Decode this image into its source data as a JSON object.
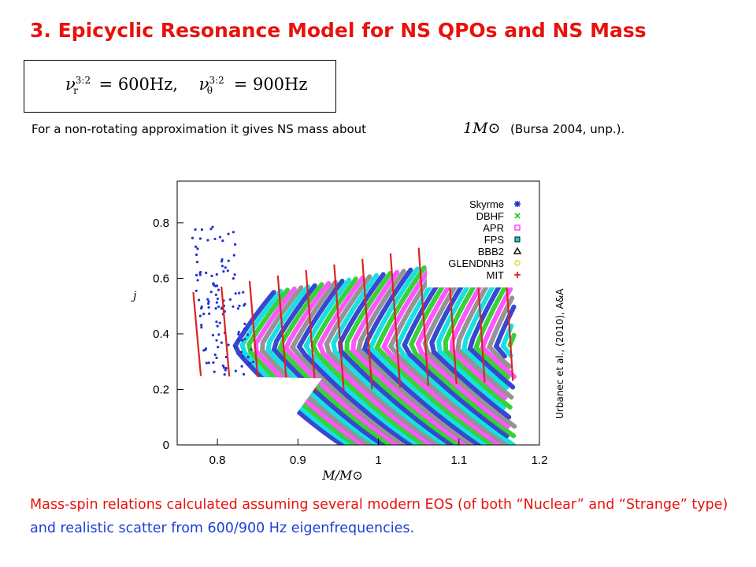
{
  "slide": {
    "title": "3. Epicyclic Resonance Model for NS QPOs and NS Mass",
    "formula": {
      "nu_r_sym": "ν",
      "nu_r_sup": "3:2",
      "nu_r_sub": "r",
      "nu_r_val": "= 600Hz,",
      "nu_t_sym": "ν",
      "nu_t_sup": "3:2",
      "nu_t_sub": "θ",
      "nu_t_val": "= 900Hz"
    },
    "line2_text": "For a non-rotating approximation it gives NS mass about",
    "mass_symbol": "1M⊙",
    "line2_ref": "(Bursa 2004, unp.).",
    "side_reference": "Urbanec et al., (2010), A&A",
    "caption_red": "Mass-spin relations calculated assuming several modern EOS (of both “Nuclear” and “Strange” type)",
    "caption_blue": "and realistic scatter from 600/900 Hz eigenfrequencies."
  },
  "chart_data": {
    "type": "scatter",
    "xlabel": "M/M⊙",
    "ylabel": "j",
    "xlim": [
      0.75,
      1.2
    ],
    "ylim": [
      0,
      0.95
    ],
    "xticks": [
      "0.8",
      "0.9",
      "1",
      "1.1",
      "1.2"
    ],
    "yticks": [
      "0",
      "0.2",
      "0.4",
      "0.6",
      "0.8"
    ],
    "legend_position": "top-right",
    "series": [
      {
        "name": "Skyrme",
        "color": "#2233cc",
        "marker": "asterisk"
      },
      {
        "name": "DBHF",
        "color": "#22cc22",
        "marker": "x"
      },
      {
        "name": "APR",
        "color": "#ff44ff",
        "marker": "square-open"
      },
      {
        "name": "FPS",
        "color": "#00dddd",
        "marker": "square-filled"
      },
      {
        "name": "BBB2",
        "color": "#111111",
        "marker": "triangle"
      },
      {
        "name": "GLENDNH3",
        "color": "#dddd22",
        "marker": "circle-open"
      },
      {
        "name": "MIT",
        "color": "#dd2222",
        "marker": "plus"
      }
    ]
  }
}
